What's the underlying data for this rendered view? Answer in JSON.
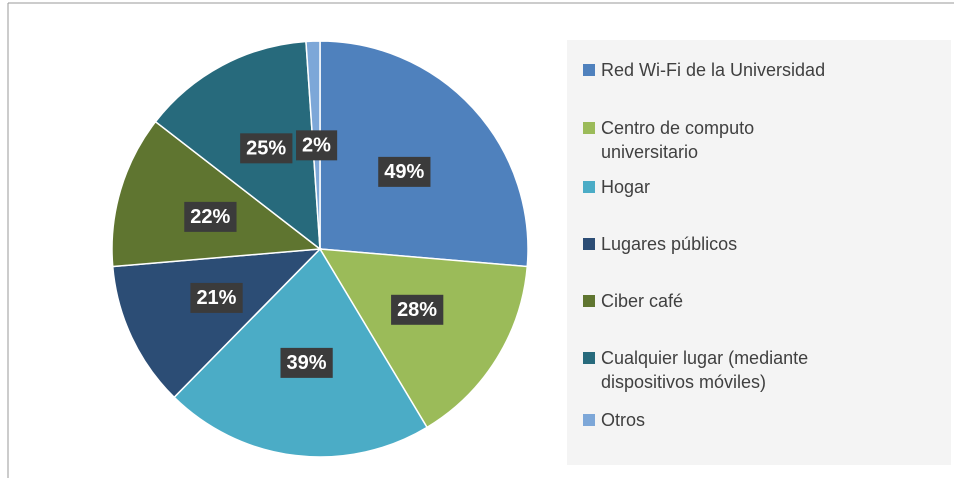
{
  "chart_data": {
    "type": "pie",
    "categories": [
      "Red Wi-Fi de la Universidad",
      "Centro de computo universitario",
      "Hogar",
      "Lugares públicos",
      "Ciber café",
      "Cualquier lugar (mediante dispositivos móviles)",
      "Otros"
    ],
    "values": [
      49,
      28,
      39,
      21,
      22,
      25,
      2
    ],
    "value_labels": [
      "49%",
      "28%",
      "39%",
      "21%",
      "22%",
      "25%",
      "2%"
    ],
    "colors": [
      "#4f81bd",
      "#9bbb59",
      "#4bacc6",
      "#2c4d75",
      "#5f7530",
      "#276a7c",
      "#7da7d8"
    ],
    "legend": "right"
  }
}
